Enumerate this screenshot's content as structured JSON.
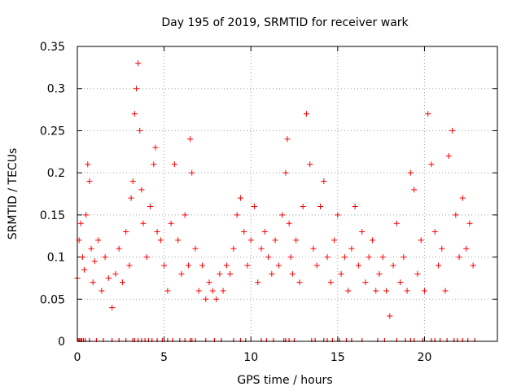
{
  "chart_data": {
    "type": "scatter",
    "title": "Day 195 of 2019, SRMTID for receiver wark",
    "xlabel": "GPS time / hours",
    "ylabel": "SRMTID / TECUs",
    "xlim": [
      0,
      24.2
    ],
    "ylim": [
      0,
      0.35
    ],
    "xticks": [
      0,
      5,
      10,
      15,
      20
    ],
    "xtick_labels": [
      "0",
      "5",
      "10",
      "15",
      "20"
    ],
    "yticks": [
      0,
      0.05,
      0.1,
      0.15,
      0.2,
      0.25,
      0.3,
      0.35
    ],
    "ytick_labels": [
      "0",
      "0.05",
      "0.1",
      "0.15",
      "0.2",
      "0.25",
      "0.3",
      "0.35"
    ],
    "grid": true,
    "marker": "+",
    "color": "#ff0000",
    "series": [
      {
        "name": "SRMTID",
        "x": [
          0.0,
          0.1,
          0.2,
          0.3,
          0.4,
          0.5,
          0.6,
          0.7,
          0.8,
          0.9,
          1.0,
          1.2,
          1.4,
          1.6,
          1.8,
          2.0,
          2.2,
          2.4,
          2.6,
          2.8,
          3.0,
          3.1,
          3.2,
          3.3,
          3.4,
          3.5,
          3.6,
          3.7,
          3.8,
          4.0,
          4.2,
          4.4,
          4.5,
          4.6,
          4.8,
          5.0,
          5.2,
          5.4,
          5.6,
          5.8,
          6.0,
          6.2,
          6.4,
          6.5,
          6.6,
          6.8,
          7.0,
          7.2,
          7.4,
          7.6,
          7.8,
          8.0,
          8.2,
          8.4,
          8.6,
          8.8,
          9.0,
          9.2,
          9.4,
          9.6,
          9.8,
          10.0,
          10.2,
          10.4,
          10.6,
          10.8,
          11.0,
          11.2,
          11.4,
          11.6,
          11.8,
          12.0,
          12.1,
          12.2,
          12.3,
          12.4,
          12.6,
          12.8,
          13.0,
          13.2,
          13.4,
          13.6,
          13.8,
          14.0,
          14.2,
          14.4,
          14.6,
          14.8,
          15.0,
          15.2,
          15.4,
          15.6,
          15.8,
          16.0,
          16.2,
          16.4,
          16.6,
          16.8,
          17.0,
          17.2,
          17.4,
          17.6,
          17.8,
          18.0,
          18.2,
          18.4,
          18.6,
          18.8,
          19.0,
          19.2,
          19.4,
          19.6,
          19.8,
          20.0,
          20.2,
          20.4,
          20.6,
          20.8,
          21.0,
          21.2,
          21.4,
          21.6,
          21.8,
          22.0,
          22.2,
          22.4,
          22.6,
          22.8
        ],
        "y": [
          0.075,
          0.12,
          0.14,
          0.1,
          0.085,
          0.15,
          0.21,
          0.19,
          0.11,
          0.07,
          0.095,
          0.12,
          0.06,
          0.1,
          0.075,
          0.04,
          0.08,
          0.11,
          0.07,
          0.13,
          0.09,
          0.17,
          0.19,
          0.27,
          0.3,
          0.33,
          0.25,
          0.18,
          0.14,
          0.1,
          0.16,
          0.21,
          0.23,
          0.13,
          0.12,
          0.09,
          0.06,
          0.14,
          0.21,
          0.12,
          0.08,
          0.15,
          0.09,
          0.24,
          0.2,
          0.11,
          0.06,
          0.09,
          0.05,
          0.07,
          0.06,
          0.05,
          0.08,
          0.06,
          0.09,
          0.08,
          0.11,
          0.15,
          0.17,
          0.13,
          0.09,
          0.12,
          0.16,
          0.07,
          0.11,
          0.13,
          0.1,
          0.08,
          0.12,
          0.09,
          0.15,
          0.2,
          0.24,
          0.14,
          0.1,
          0.08,
          0.12,
          0.07,
          0.16,
          0.27,
          0.21,
          0.11,
          0.09,
          0.16,
          0.19,
          0.1,
          0.07,
          0.12,
          0.15,
          0.08,
          0.1,
          0.06,
          0.11,
          0.16,
          0.09,
          0.13,
          0.07,
          0.1,
          0.12,
          0.06,
          0.08,
          0.1,
          0.06,
          0.03,
          0.09,
          0.14,
          0.07,
          0.1,
          0.06,
          0.2,
          0.18,
          0.08,
          0.12,
          0.06,
          0.27,
          0.21,
          0.13,
          0.09,
          0.11,
          0.06,
          0.22,
          0.25,
          0.15,
          0.1,
          0.17,
          0.11,
          0.14,
          0.09
        ]
      }
    ],
    "data_gap_marks": [
      0.05,
      0.12,
      0.2,
      0.25,
      0.35,
      0.45,
      0.7,
      1.1,
      1.5,
      2.0,
      2.4,
      2.8,
      3.2,
      3.3,
      3.5,
      3.7,
      3.9,
      4.1,
      4.3,
      4.6,
      4.9,
      5.2,
      5.5,
      5.9,
      6.2,
      6.5,
      6.6,
      6.8,
      7.4,
      7.9,
      8.3,
      9.0,
      9.4,
      9.7,
      10.6,
      10.9,
      11.3,
      11.9,
      12.0,
      12.2,
      12.5,
      13.5,
      13.7,
      14.2,
      14.4,
      14.7,
      15.1,
      15.5,
      15.8,
      16.4,
      17.3,
      17.7,
      18.4,
      18.9,
      19.2,
      19.4,
      19.9,
      20.4,
      20.6,
      20.9,
      21.3,
      21.7,
      21.9,
      22.2,
      22.5,
      22.9
    ]
  }
}
